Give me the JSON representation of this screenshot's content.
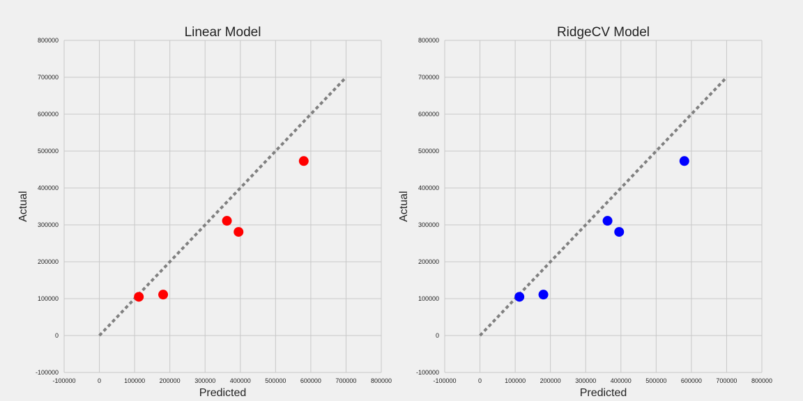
{
  "chart_data": [
    {
      "type": "scatter",
      "title": "Linear Model",
      "xlabel": "Predicted",
      "ylabel": "Actual",
      "xlim": [
        -100000,
        800000
      ],
      "ylim": [
        -100000,
        800000
      ],
      "xticks": [
        "-100000",
        "0",
        "100000",
        "200000",
        "300000",
        "400000",
        "500000",
        "600000",
        "700000",
        "800000"
      ],
      "yticks": [
        "-100000",
        "0",
        "100000",
        "200000",
        "300000",
        "400000",
        "500000",
        "600000",
        "700000",
        "800000"
      ],
      "grid": true,
      "point_color": "#ff0000",
      "reference_line": {
        "x": [
          0,
          700000
        ],
        "y": [
          0,
          700000
        ],
        "color": "#808080",
        "style": "dashed"
      },
      "points": [
        {
          "x": 112000,
          "y": 105000
        },
        {
          "x": 181000,
          "y": 111000
        },
        {
          "x": 362000,
          "y": 311000
        },
        {
          "x": 395000,
          "y": 281000
        },
        {
          "x": 580000,
          "y": 473000
        }
      ]
    },
    {
      "type": "scatter",
      "title": "RidgeCV Model",
      "xlabel": "Predicted",
      "ylabel": "Actual",
      "xlim": [
        -100000,
        800000
      ],
      "ylim": [
        -100000,
        800000
      ],
      "xticks": [
        "-100000",
        "0",
        "100000",
        "200000",
        "300000",
        "400000",
        "500000",
        "600000",
        "700000",
        "800000"
      ],
      "yticks": [
        "-100000",
        "0",
        "100000",
        "200000",
        "300000",
        "400000",
        "500000",
        "600000",
        "700000",
        "800000"
      ],
      "grid": true,
      "point_color": "#0000ff",
      "reference_line": {
        "x": [
          0,
          700000
        ],
        "y": [
          0,
          700000
        ],
        "color": "#808080",
        "style": "dashed"
      },
      "points": [
        {
          "x": 112000,
          "y": 105000
        },
        {
          "x": 180000,
          "y": 111000
        },
        {
          "x": 362000,
          "y": 311000
        },
        {
          "x": 395000,
          "y": 281000
        },
        {
          "x": 580000,
          "y": 473000
        }
      ]
    }
  ]
}
